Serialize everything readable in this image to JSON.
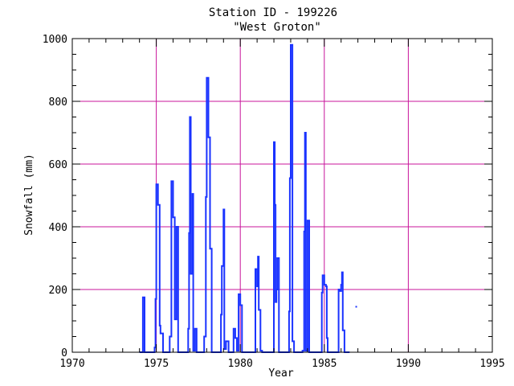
{
  "chart_data": {
    "type": "line",
    "title": "Station ID - 199226",
    "subtitle": "\"West Groton\"",
    "xlabel": "Year",
    "ylabel": "Snowfall (mm)",
    "xlim": [
      1970,
      1995
    ],
    "ylim": [
      0,
      1000
    ],
    "xticks": [
      1970,
      1975,
      1980,
      1985,
      1990,
      1995
    ],
    "yticks": [
      0,
      200,
      400,
      600,
      800,
      1000
    ],
    "grid": true,
    "colors": {
      "series": "#1a33ff",
      "grid": "#c8149b",
      "axes": "#000000"
    },
    "series": [
      {
        "points": [
          [
            1974.0,
            0
          ],
          [
            1974.1,
            0
          ],
          [
            1974.2,
            175
          ],
          [
            1974.3,
            0
          ],
          [
            1974.8,
            0
          ],
          [
            1974.9,
            15
          ],
          [
            1974.95,
            170
          ],
          [
            1975.0,
            535
          ],
          [
            1975.1,
            470
          ],
          [
            1975.2,
            85
          ],
          [
            1975.25,
            60
          ],
          [
            1975.4,
            0
          ],
          [
            1975.7,
            0
          ],
          [
            1975.8,
            50
          ],
          [
            1975.9,
            545
          ],
          [
            1976.0,
            430
          ],
          [
            1976.1,
            105
          ],
          [
            1976.2,
            400
          ],
          [
            1976.3,
            0
          ],
          [
            1976.8,
            0
          ],
          [
            1976.9,
            75
          ],
          [
            1976.95,
            380
          ],
          [
            1977.0,
            750
          ],
          [
            1977.05,
            250
          ],
          [
            1977.15,
            505
          ],
          [
            1977.2,
            5
          ],
          [
            1977.3,
            75
          ],
          [
            1977.4,
            0
          ],
          [
            1977.8,
            0
          ],
          [
            1977.85,
            50
          ],
          [
            1977.95,
            495
          ],
          [
            1978.0,
            875
          ],
          [
            1978.1,
            685
          ],
          [
            1978.2,
            330
          ],
          [
            1978.3,
            0
          ],
          [
            1978.8,
            0
          ],
          [
            1978.85,
            120
          ],
          [
            1978.9,
            275
          ],
          [
            1979.0,
            455
          ],
          [
            1979.05,
            10
          ],
          [
            1979.15,
            35
          ],
          [
            1979.3,
            0
          ],
          [
            1979.5,
            0
          ],
          [
            1979.6,
            75
          ],
          [
            1979.7,
            45
          ],
          [
            1979.8,
            5
          ],
          [
            1979.9,
            185
          ],
          [
            1980.0,
            150
          ],
          [
            1980.1,
            0
          ],
          [
            1980.8,
            0
          ],
          [
            1980.9,
            265
          ],
          [
            1981.0,
            210
          ],
          [
            1981.05,
            305
          ],
          [
            1981.1,
            135
          ],
          [
            1981.2,
            5
          ],
          [
            1981.3,
            0
          ],
          [
            1981.8,
            0
          ],
          [
            1981.9,
            0
          ],
          [
            1982.0,
            670
          ],
          [
            1982.05,
            470
          ],
          [
            1982.1,
            160
          ],
          [
            1982.15,
            200
          ],
          [
            1982.2,
            300
          ],
          [
            1982.3,
            0
          ],
          [
            1982.8,
            0
          ],
          [
            1982.9,
            130
          ],
          [
            1982.95,
            555
          ],
          [
            1983.0,
            980
          ],
          [
            1983.1,
            35
          ],
          [
            1983.2,
            0
          ],
          [
            1983.6,
            0
          ],
          [
            1983.7,
            5
          ],
          [
            1983.8,
            385
          ],
          [
            1983.85,
            700
          ],
          [
            1983.9,
            5
          ],
          [
            1984.0,
            420
          ],
          [
            1984.1,
            0
          ],
          [
            1984.8,
            0
          ],
          [
            1984.85,
            190
          ],
          [
            1984.9,
            245
          ],
          [
            1985.0,
            215
          ],
          [
            1985.1,
            210
          ],
          [
            1985.15,
            45
          ],
          [
            1985.2,
            0
          ],
          [
            1985.8,
            0
          ],
          [
            1985.85,
            200
          ],
          [
            1985.9,
            195
          ],
          [
            1986.0,
            215
          ],
          [
            1986.05,
            255
          ],
          [
            1986.1,
            70
          ],
          [
            1986.2,
            0
          ],
          [
            1986.5,
            0
          ]
        ]
      }
    ],
    "isolated_points": [
      [
        1986.9,
        145
      ]
    ]
  }
}
